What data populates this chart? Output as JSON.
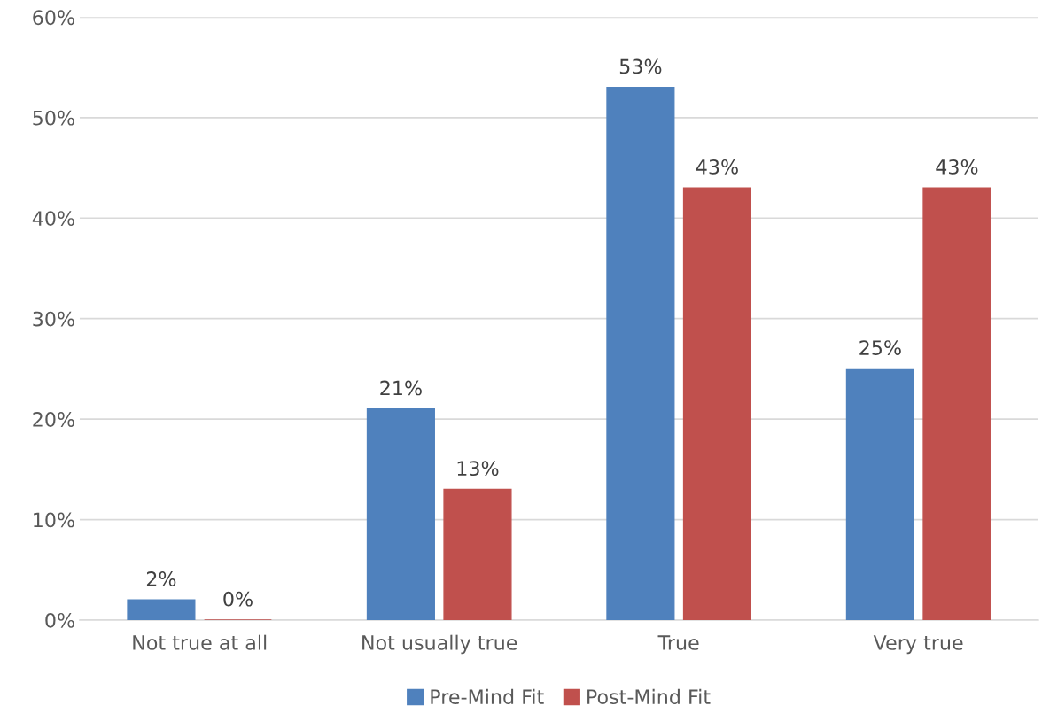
{
  "chart_data": {
    "type": "bar",
    "categories": [
      "Not true at all",
      "Not usually true",
      "True",
      "Very true"
    ],
    "series": [
      {
        "name": "Pre-Mind Fit",
        "color": "#4f81bd",
        "values": [
          2,
          21,
          53,
          25
        ],
        "value_labels": [
          "2%",
          "21%",
          "53%",
          "25%"
        ]
      },
      {
        "name": "Post-Mind Fit",
        "color": "#c0504d",
        "values": [
          0,
          13,
          43,
          43
        ],
        "value_labels": [
          "0%",
          "13%",
          "43%",
          "43%"
        ]
      }
    ],
    "ylim": [
      0,
      60
    ],
    "yticks": [
      {
        "value": 0,
        "label": "0%"
      },
      {
        "value": 10,
        "label": "10%"
      },
      {
        "value": 20,
        "label": "20%"
      },
      {
        "value": 30,
        "label": "30%"
      },
      {
        "value": 40,
        "label": "40%"
      },
      {
        "value": 50,
        "label": "50%"
      },
      {
        "value": 60,
        "label": "60%"
      }
    ],
    "grid": "y",
    "legend": "bottom"
  }
}
